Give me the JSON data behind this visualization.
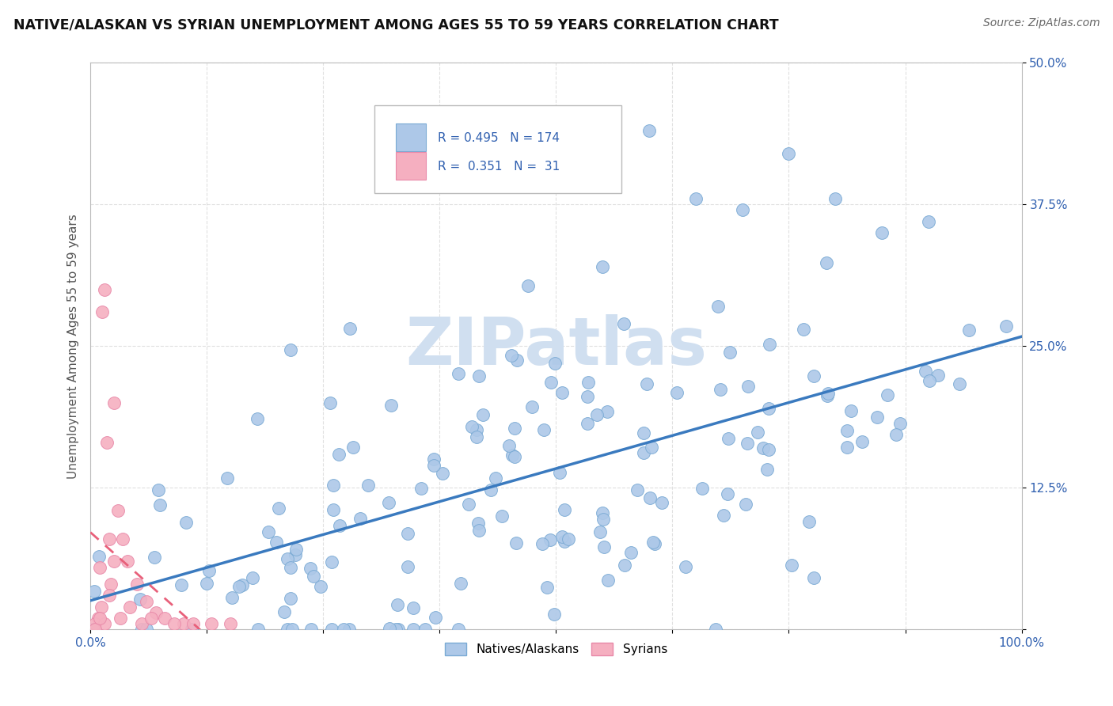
{
  "title": "NATIVE/ALASKAN VS SYRIAN UNEMPLOYMENT AMONG AGES 55 TO 59 YEARS CORRELATION CHART",
  "source": "Source: ZipAtlas.com",
  "ylabel": "Unemployment Among Ages 55 to 59 years",
  "xlim": [
    0,
    1.0
  ],
  "ylim": [
    0,
    0.5
  ],
  "xtick_positions": [
    0.0,
    0.125,
    0.25,
    0.375,
    0.5,
    0.625,
    0.75,
    0.875,
    1.0
  ],
  "xticklabels": [
    "0.0%",
    "",
    "",
    "",
    "",
    "",
    "",
    "",
    "100.0%"
  ],
  "ytick_positions": [
    0.0,
    0.125,
    0.25,
    0.375,
    0.5
  ],
  "yticklabels": [
    "",
    "12.5%",
    "25.0%",
    "37.5%",
    "50.0%"
  ],
  "native_R": 0.495,
  "native_N": 174,
  "syrian_R": 0.351,
  "syrian_N": 31,
  "native_color": "#adc8e8",
  "syrian_color": "#f5afc0",
  "native_edge_color": "#7aaad4",
  "syrian_edge_color": "#e888a8",
  "native_line_color": "#3a7abf",
  "syrian_line_color": "#e8607a",
  "tick_color": "#3060b0",
  "legend_text_color": "#3060b0",
  "watermark_color": "#d0dff0",
  "title_fontsize": 12.5,
  "source_fontsize": 10,
  "tick_fontsize": 11,
  "ylabel_fontsize": 11,
  "legend_fontsize": 11,
  "watermark_fontsize": 60
}
